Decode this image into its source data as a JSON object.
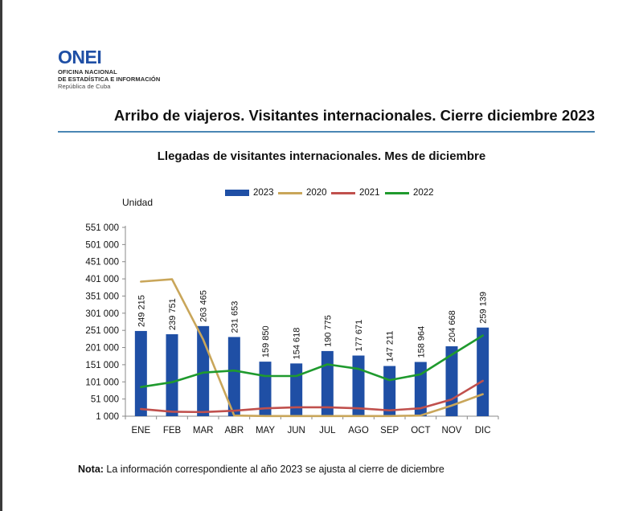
{
  "header": {
    "logo_text": "ONEI",
    "org_line1": "OFICINA NACIONAL",
    "org_line2": "DE ESTADÍSTICA E INFORMACIÓN",
    "org_line3": "República de Cuba",
    "page_title": "Arribo de viajeros. Visitantes internacionales.  Cierre diciembre 2023"
  },
  "colors": {
    "bar_2023": "#1f4fa5",
    "line_2020": "#c9a65a",
    "line_2021": "#c0504d",
    "line_2022": "#1f9a2e",
    "rule": "#4a86b4"
  },
  "chart_data": {
    "type": "bar",
    "title": "Llegadas de visitantes internacionales. Mes de diciembre",
    "ylabel": "Unidad",
    "xlabel": "",
    "ylim": [
      1000,
      551000
    ],
    "yticks": [
      "551 000",
      "501 000",
      "451 000",
      "401 000",
      "351 000",
      "301 000",
      "251 000",
      "201 000",
      "151 000",
      "101 000",
      "51 000",
      "1 000"
    ],
    "ytick_values": [
      551000,
      501000,
      451000,
      401000,
      351000,
      301000,
      251000,
      201000,
      151000,
      101000,
      51000,
      1000
    ],
    "categories": [
      "ENE",
      "FEB",
      "MAR",
      "ABR",
      "MAY",
      "JUN",
      "JUL",
      "AGO",
      "SEP",
      "OCT",
      "NOV",
      "DIC"
    ],
    "legend_position": "top",
    "series": [
      {
        "name": "2023",
        "kind": "bar",
        "color": "#1f4fa5",
        "values": [
          249215,
          239751,
          263465,
          231653,
          159850,
          154618,
          190775,
          177671,
          147211,
          158964,
          204668,
          259139
        ],
        "labels": [
          "249 215",
          "239 751",
          "263 465",
          "231 653",
          "159 850",
          "154 618",
          "190 775",
          "177 671",
          "147 211",
          "158 964",
          "204 668",
          "259 139"
        ]
      },
      {
        "name": "2020",
        "kind": "line",
        "color": "#c9a65a",
        "values": [
          393000,
          400000,
          225000,
          3000,
          1500,
          1500,
          1500,
          1500,
          1500,
          3000,
          32000,
          65000
        ]
      },
      {
        "name": "2021",
        "kind": "line",
        "color": "#c0504d",
        "values": [
          22000,
          14000,
          13000,
          17000,
          24000,
          27000,
          27000,
          24000,
          18000,
          24000,
          50000,
          104000
        ]
      },
      {
        "name": "2022",
        "kind": "line",
        "color": "#1f9a2e",
        "values": [
          86000,
          100000,
          128000,
          134000,
          118000,
          118000,
          152000,
          139000,
          106000,
          123000,
          180000,
          236000
        ]
      }
    ]
  },
  "footer": {
    "note_label": "Nota:",
    "note_text": " La información correspondiente al año 2023 se ajusta al cierre de diciembre"
  }
}
